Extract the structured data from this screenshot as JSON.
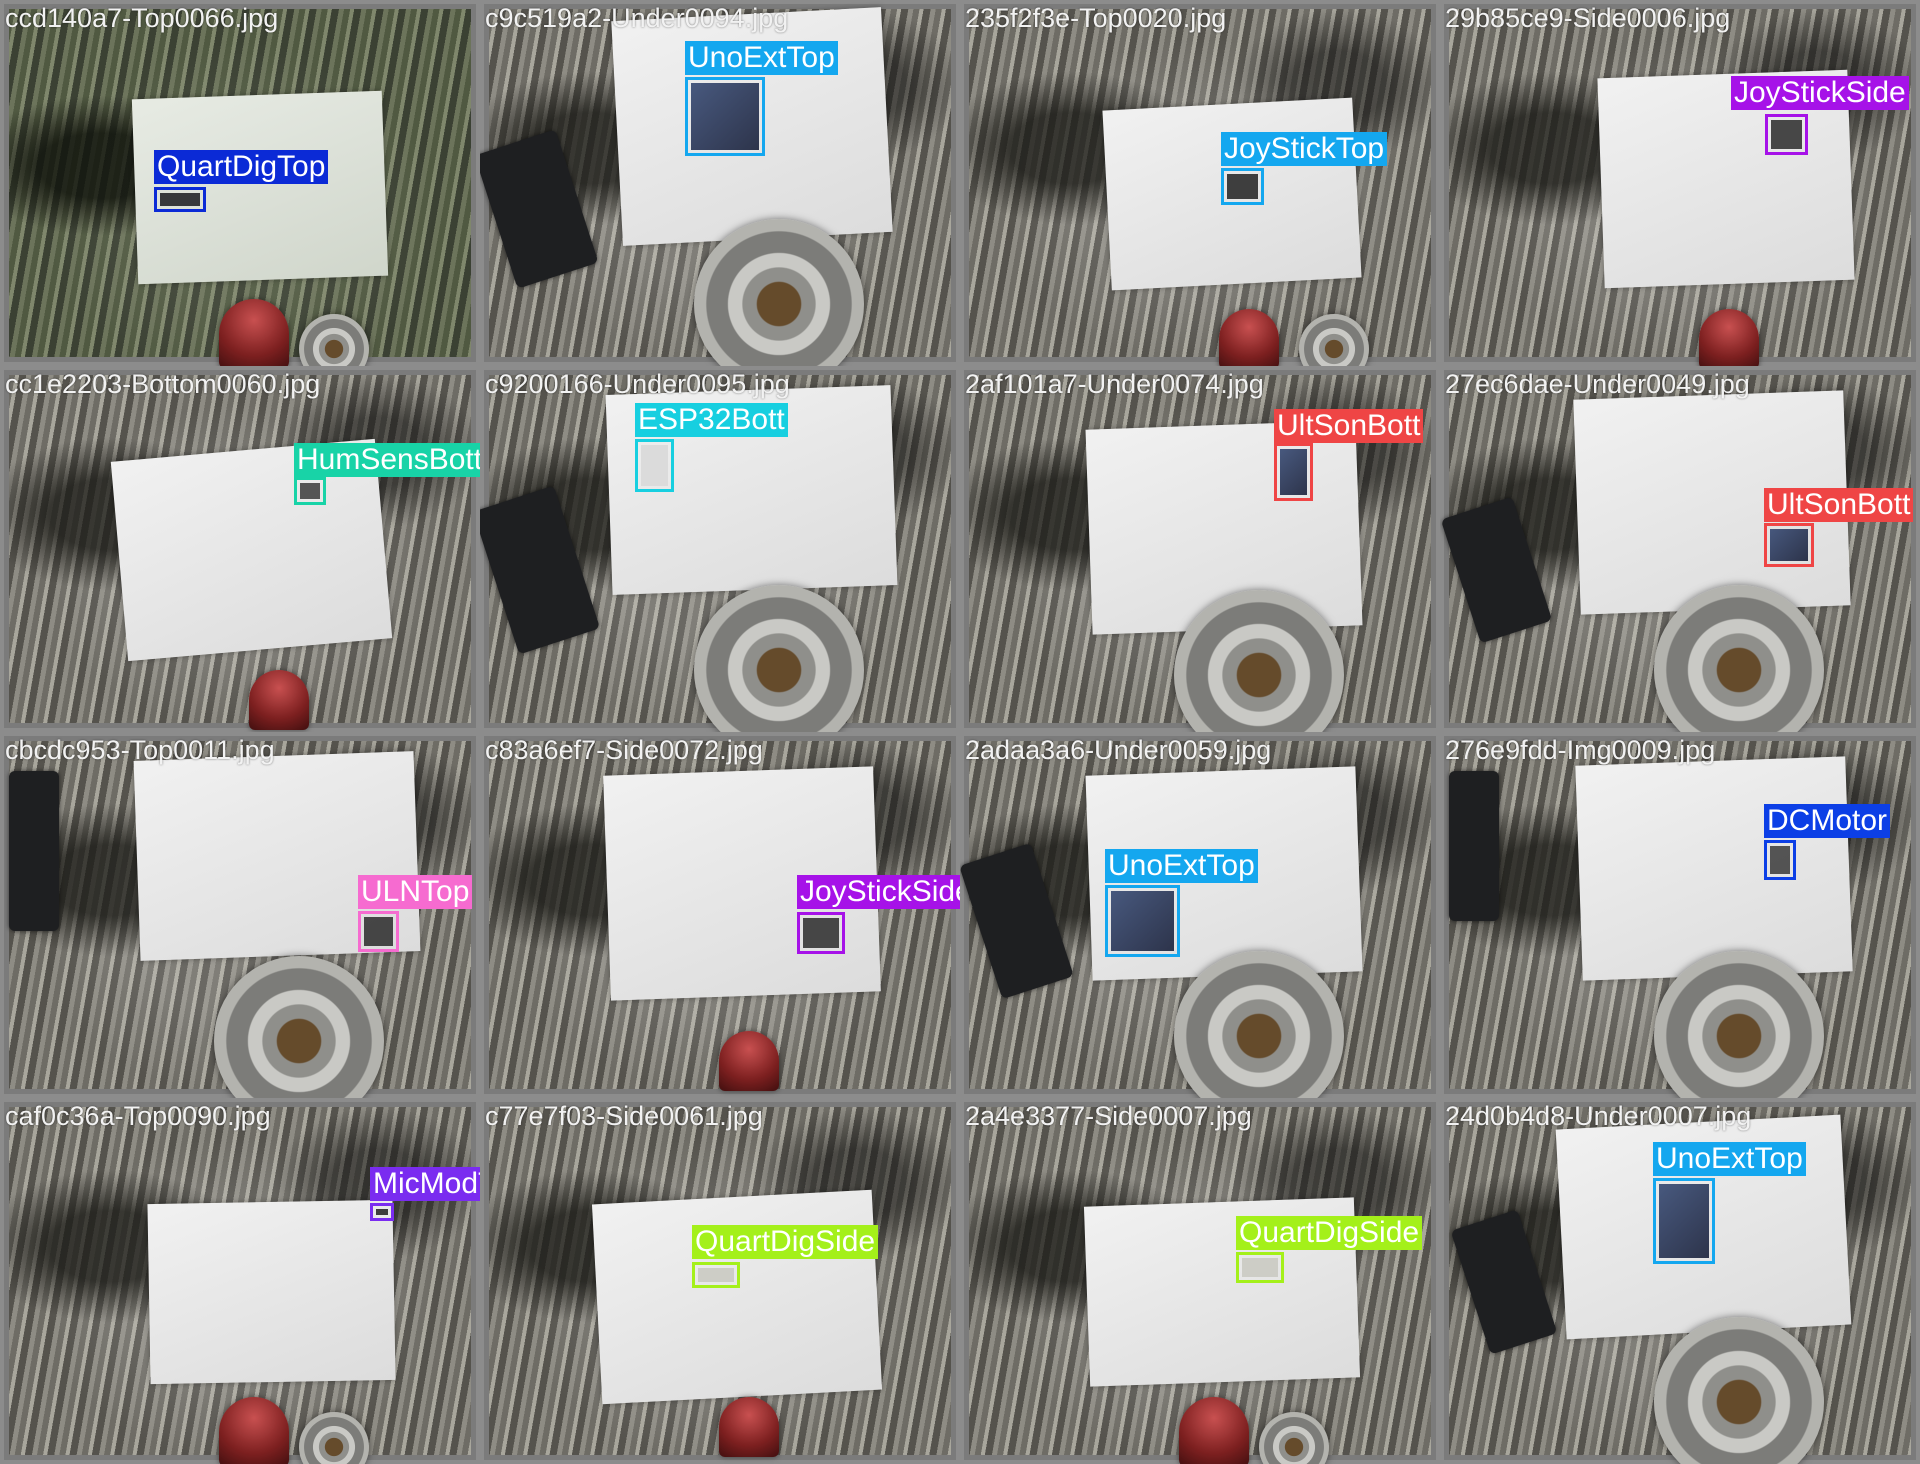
{
  "colors": {
    "QuartDigTop": "#0b2ad6",
    "UnoExtTop": "#14a7ef",
    "JoyStickTop": "#14a7ef",
    "JoyStickSide": "#a612e8",
    "HumSensBott": "#18d3a7",
    "ESP32Bott": "#17cfe0",
    "UltSonBott": "#ef4545",
    "ULNTop": "#f66bd0",
    "DCMotor": "#0c3fe6",
    "MicModTop": "#7a2cf0",
    "QuartDigSide": "#a4f01a"
  },
  "images": [
    {
      "filename": "ccd140a7-Top0066.jpg",
      "label": "QuartDigTop"
    },
    {
      "filename": "c9c519a2-Under0094.jpg",
      "label": "UnoExtTop"
    },
    {
      "filename": "235f2f3e-Top0020.jpg",
      "label": "JoyStickTop"
    },
    {
      "filename": "29b85ce9-Side0006.jpg",
      "label": "JoyStickSide"
    },
    {
      "filename": "cc1e2203-Bottom0060.jpg",
      "label": "HumSensBott"
    },
    {
      "filename": "c9200166-Under0095.jpg",
      "label": "ESP32Bott"
    },
    {
      "filename": "2af101a7-Under0074.jpg",
      "label": "UltSonBott"
    },
    {
      "filename": "27ec6dae-Under0049.jpg",
      "label": "UltSonBott"
    },
    {
      "filename": "cbcdc953-Top0011.jpg",
      "label": "ULNTop"
    },
    {
      "filename": "c83a6ef7-Side0072.jpg",
      "label": "JoyStickSide"
    },
    {
      "filename": "2adaa3a6-Under0059.jpg",
      "label": "UnoExtTop"
    },
    {
      "filename": "276e9fdd-Img0009.jpg",
      "label": "DCMotor"
    },
    {
      "filename": "caf0c36a-Top0090.jpg",
      "label": "MicModTop"
    },
    {
      "filename": "c77e7f03-Side0061.jpg",
      "label": "QuartDigSide"
    },
    {
      "filename": "2a4e3377-Side0007.jpg",
      "label": "QuartDigSide"
    },
    {
      "filename": "24d0b4d8-Under0007.jpg",
      "label": "UnoExtTop"
    }
  ]
}
